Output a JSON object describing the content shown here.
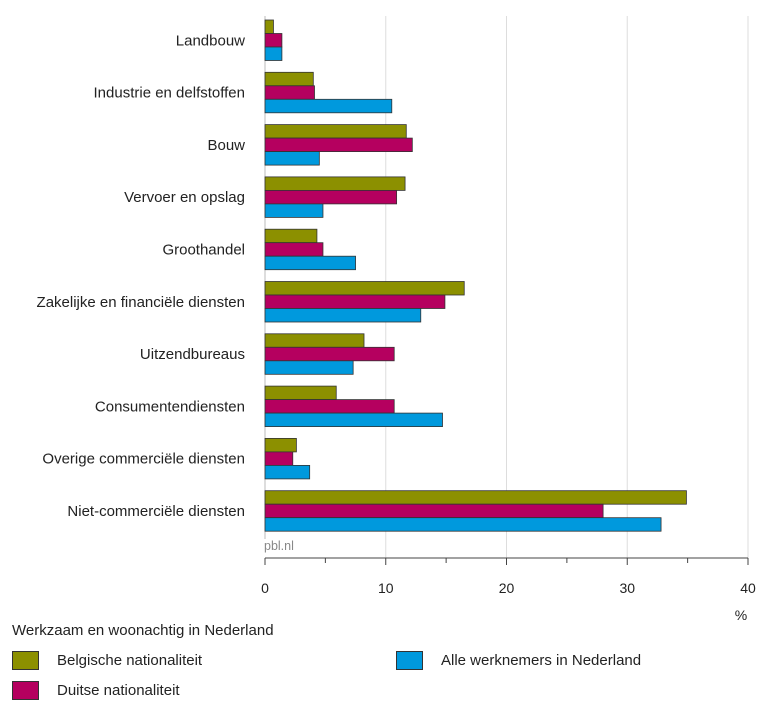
{
  "chart_data": {
    "type": "bar",
    "orientation": "horizontal",
    "categories": [
      "Landbouw",
      "Industrie en delfstoffen",
      "Bouw",
      "Vervoer en opslag",
      "Groothandel",
      "Zakelijke en financiële diensten",
      "Uitzendbureaus",
      "Consumentendiensten",
      "Overige commerciële diensten",
      "Niet-commerciële diensten"
    ],
    "series": [
      {
        "name": "Belgische nationaliteit",
        "color": "#8c9000",
        "values": [
          0.7,
          4.0,
          11.7,
          11.6,
          4.3,
          16.5,
          8.2,
          5.9,
          2.6,
          34.9
        ]
      },
      {
        "name": "Duitse nationaliteit",
        "color": "#b5005f",
        "values": [
          1.4,
          4.1,
          12.2,
          10.9,
          4.8,
          14.9,
          10.7,
          10.7,
          2.3,
          28.0
        ]
      },
      {
        "name": "Alle werknemers in Nederland",
        "color": "#0099dd",
        "values": [
          1.4,
          10.5,
          4.5,
          4.8,
          7.5,
          12.9,
          7.3,
          14.7,
          3.7,
          32.8
        ]
      }
    ],
    "xlim": [
      0,
      40
    ],
    "xticks": [
      "0",
      "10",
      "20",
      "30",
      "40"
    ],
    "xlabel": "%",
    "grid": true,
    "source": "pbl.nl",
    "legend": {
      "title": "Werkzaam en woonachtig in Nederland",
      "placement": "bottom"
    }
  }
}
